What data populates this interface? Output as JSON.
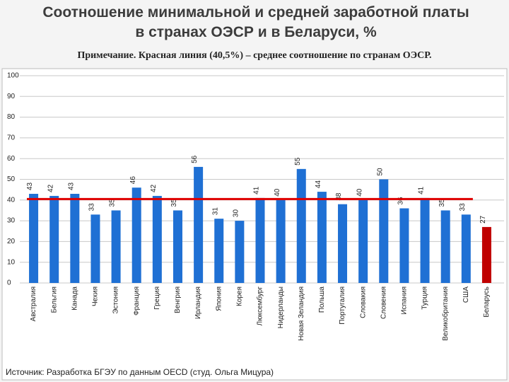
{
  "chart_data": {
    "type": "bar",
    "title": [
      "Соотношение минимальной и средней заработной платы",
      "в странах ОЭСР и в Беларуси, %"
    ],
    "note": "Примечание. Красная линия (40,5%) – среднее соотношение по странам ОЭСР.",
    "source": "Источник: Разработка БГЭУ по данным OECD (студ. Ольга Мицура)",
    "categories": [
      "Австралия",
      "Бельгия",
      "Канада",
      "Чехия",
      "Эстония",
      "Франция",
      "Греция",
      "Венгрия",
      "Ирландия",
      "Япония",
      "Корея",
      "Люксембург",
      "Нидерланды",
      "Новая Зеландия",
      "Польша",
      "Португалия",
      "Словакия",
      "Словения",
      "Испания",
      "Турция",
      "Великобритания",
      "США",
      "Беларусь"
    ],
    "values": [
      43,
      42,
      43,
      33,
      35,
      46,
      42,
      35,
      56,
      31,
      30,
      41,
      40,
      55,
      44,
      38,
      40,
      50,
      36,
      41,
      35,
      33,
      27
    ],
    "colors": [
      "#1f70d4",
      "#1f70d4",
      "#1f70d4",
      "#1f70d4",
      "#1f70d4",
      "#1f70d4",
      "#1f70d4",
      "#1f70d4",
      "#1f70d4",
      "#1f70d4",
      "#1f70d4",
      "#1f70d4",
      "#1f70d4",
      "#1f70d4",
      "#1f70d4",
      "#1f70d4",
      "#1f70d4",
      "#1f70d4",
      "#1f70d4",
      "#1f70d4",
      "#1f70d4",
      "#1f70d4",
      "#c00000"
    ],
    "reference_line": {
      "value": 40.5,
      "color": "#e00000"
    },
    "ylim": [
      0,
      100
    ],
    "yticks": [
      0,
      10,
      20,
      30,
      40,
      50,
      60,
      70,
      80,
      90,
      100
    ],
    "grid": true
  }
}
